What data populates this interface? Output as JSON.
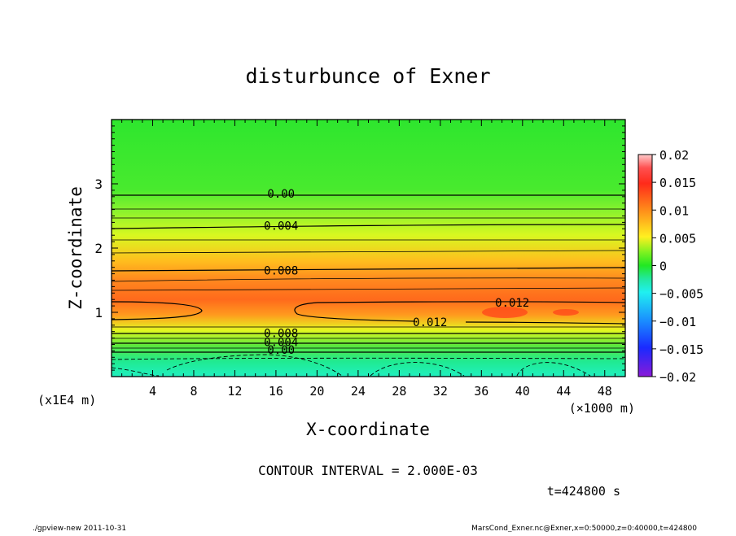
{
  "chart_data": {
    "type": "contour",
    "title": "disturbunce of Exner",
    "xlabel": "X-coordinate",
    "ylabel": "Z-coordinate",
    "x_scale_label": "(×1000 m)",
    "y_scale_label": "(x1E4 m)",
    "xlim": [
      0,
      50
    ],
    "ylim": [
      0,
      4
    ],
    "x_ticks": [
      4,
      8,
      12,
      16,
      20,
      24,
      28,
      32,
      36,
      40,
      44,
      48
    ],
    "y_ticks": [
      1,
      2,
      3
    ],
    "colorbar": {
      "range": [
        -0.02,
        0.02
      ],
      "tick_values": [
        0.02,
        0.015,
        0.01,
        0.005,
        0,
        -0.005,
        -0.01,
        -0.015,
        -0.02
      ],
      "tick_labels": [
        "0.02",
        "0.015",
        "0.01",
        "0.005",
        "0",
        "−0.005",
        "−0.01",
        "−0.015",
        "−0.02"
      ]
    },
    "contour_labels": [
      {
        "text": "0.00",
        "x": 16.5,
        "z": 2.85
      },
      {
        "text": "0.004",
        "x": 16.5,
        "z": 2.35
      },
      {
        "text": "0.008",
        "x": 16.5,
        "z": 1.65
      },
      {
        "text": "0.012",
        "x": 39,
        "z": 1.15
      },
      {
        "text": "0.012",
        "x": 31,
        "z": 0.85
      },
      {
        "text": "0.008",
        "x": 16.5,
        "z": 0.68
      },
      {
        "text": "0.004",
        "x": 16.5,
        "z": 0.54
      },
      {
        "text": "0.00",
        "x": 16.5,
        "z": 0.42
      }
    ],
    "contour_interval": "CONTOUR INTERVAL = 2.000E-03",
    "time_label": "t=424800 s"
  },
  "footer": {
    "left": "./gpview-new   2011-10-31",
    "right": "MarsCond_Exner.nc@Exner,x=0:50000,z=0:40000,t=424800"
  }
}
